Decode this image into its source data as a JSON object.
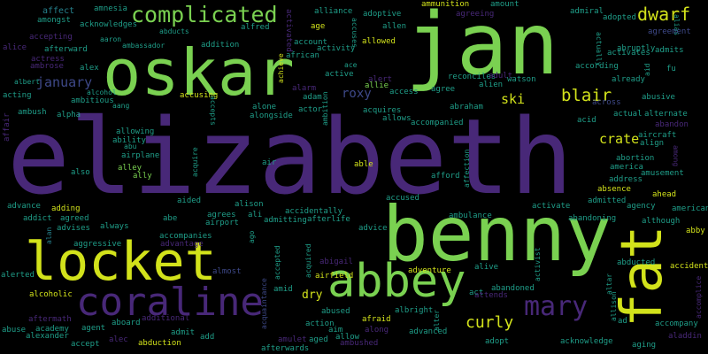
{
  "palette": {
    "yellow": "#d2e21b",
    "lime": "#7ad151",
    "green": "#35b779",
    "teal": "#1f9e89",
    "cyan": "#26828e",
    "blue": "#31688e",
    "indigo": "#3e4989",
    "purple": "#482878",
    "dark": "#440154"
  },
  "words": {
    "elizabeth": "elizabeth",
    "jan": "jan",
    "oskar": "oskar",
    "benny": "benny",
    "locket": "locket",
    "abbey": "abbey",
    "coraline": "coraline",
    "fat": "fat",
    "complicated": "complicated",
    "mary": "mary",
    "dwarf": "dwarf",
    "blair": "blair",
    "curly": "curly",
    "crate": "crate",
    "january": "january",
    "roxy": "roxy",
    "ski": "ski",
    "affect": "affect",
    "amnesia": "amnesia",
    "amongst": "amongst",
    "acknowledges": "acknowledges",
    "abducts": "abducts",
    "accepting": "accepting",
    "aaron": "aaron",
    "ambassador": "ambassador",
    "addition": "addition",
    "alice": "alice",
    "afterward": "afterward",
    "actress": "actress",
    "ambrose": "ambrose",
    "alex": "alex",
    "albert": "albert",
    "acting": "acting",
    "alcohol": "alcohol",
    "ambitious": "ambitious",
    "aang": "aang",
    "ambush": "ambush",
    "alpha": "alpha",
    "affair": "affair",
    "allowing": "allowing",
    "ability": "ability",
    "abu": "abu",
    "airplane": "airplane",
    "alley": "alley",
    "also": "also",
    "ally": "ally",
    "advance": "advance",
    "adding": "adding",
    "addict": "addict",
    "agreed": "agreed",
    "advises": "advises",
    "always": "always",
    "aggressive": "aggressive",
    "alan": "alan",
    "alerted": "alerted",
    "alcoholic": "alcoholic",
    "aftermath": "aftermath",
    "abuse": "abuse",
    "academy": "academy",
    "alexander": "alexander",
    "agent": "agent",
    "accept": "accept",
    "aboard": "aboard",
    "alec": "alec",
    "abduction": "abduction",
    "additional": "additional",
    "admit": "admit",
    "add": "add",
    "accompanies": "accompanies",
    "advantage": "advantage",
    "alfred": "alfred",
    "activated": "activated",
    "account": "account",
    "african": "african",
    "achieve": "achieve",
    "activity": "activity",
    "age": "age",
    "alliance": "alliance",
    "accuses": "accuses",
    "allowed": "allowed",
    "adoptive": "adoptive",
    "allen": "allen",
    "ace": "ace",
    "active": "active",
    "alert": "alert",
    "alarm": "alarm",
    "adam": "adam",
    "allie": "allie",
    "access": "access",
    "accusing": "accusing",
    "alone": "alone",
    "alongside": "alongside",
    "actor": "actor",
    "ambition": "ambition",
    "acquires": "acquires",
    "allows": "allows",
    "accepts": "accepts",
    "acquire": "acquire",
    "aided": "aided",
    "abe": "abe",
    "alison": "alison",
    "agrees": "agrees",
    "ali": "ali",
    "airport": "airport",
    "ago": "ago",
    "admitting": "admitting",
    "afterlife": "afterlife",
    "accidentally": "accidentally",
    "air": "air",
    "able": "able",
    "accused": "accused",
    "afford": "afford",
    "affection": "affection",
    "advice": "advice",
    "almost": "almost",
    "amid": "amid",
    "airfield": "airfield",
    "abigail": "abigail",
    "acquired": "acquired",
    "accepted": "accepted",
    "acquaintance": "acquaintance",
    "abused": "abused",
    "action": "action",
    "aim": "aim",
    "allow": "allow",
    "along": "along",
    "amulet": "amulet",
    "aged": "aged",
    "ambushed": "ambushed",
    "afterwards": "afterwards",
    "afraid": "afraid",
    "albright": "albright",
    "advanced": "advanced",
    "dry": "dry",
    "ammunition": "ammunition",
    "amount": "amount",
    "agreeing": "agreeing",
    "reconciles": "reconciles",
    "adult": "adult",
    "watson": "watson",
    "alien": "alien",
    "agree": "agree",
    "abraham": "abraham",
    "accompanied": "accompanied",
    "admiral": "admiral",
    "adopted": "adopted",
    "activates": "activates",
    "actually": "actually",
    "alias": "alias",
    "agreement": "agreement",
    "abruptly": "abruptly",
    "admits": "admits",
    "aid": "aid",
    "fu": "fu",
    "according": "according",
    "already": "already",
    "abusive": "abusive",
    "across": "across",
    "actual": "actual",
    "alternate": "alternate",
    "acid": "acid",
    "abandon": "abandon",
    "align": "align",
    "aircraft": "aircraft",
    "among": "among",
    "abortion": "abortion",
    "america": "america",
    "amusement": "amusement",
    "address": "address",
    "absence": "absence",
    "ahead": "ahead",
    "admitted": "admitted",
    "agency": "agency",
    "activate": "activate",
    "abandoning": "abandoning",
    "although": "although",
    "abby": "abby",
    "ambulance": "ambulance",
    "american": "american",
    "adventure": "adventure",
    "alive": "alive",
    "activist": "activist",
    "abducted": "abducted",
    "accident": "accident",
    "altar": "altar",
    "act": "act",
    "abandoned": "abandoned",
    "attends": "attends",
    "allison": "allison",
    "ad": "ad",
    "accomplice": "accomplice",
    "alter": "alter",
    "accompany": "accompany",
    "adopt": "adopt",
    "acknowledge": "acknowledge",
    "aging": "aging",
    "aladdin": "aladdin"
  }
}
